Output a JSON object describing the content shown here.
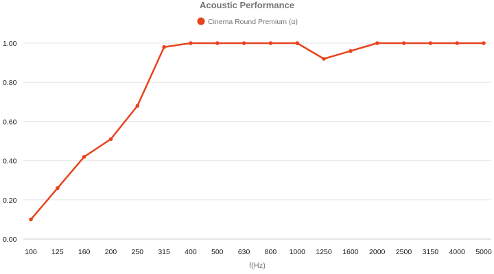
{
  "chart_data": {
    "type": "line",
    "title": "Acoustic Performance",
    "xlabel": "f(Hz)",
    "ylabel": "",
    "categories": [
      "100",
      "125",
      "160",
      "200",
      "250",
      "315",
      "400",
      "500",
      "630",
      "800",
      "1000",
      "1250",
      "1600",
      "2000",
      "2500",
      "3150",
      "4000",
      "5000"
    ],
    "series": [
      {
        "name": "Cinema Round Premium (α)",
        "color": "#e8431c",
        "values": [
          0.1,
          0.26,
          0.42,
          0.51,
          0.68,
          0.98,
          1.0,
          1.0,
          1.0,
          1.0,
          1.0,
          0.92,
          0.96,
          1.0,
          1.0,
          1.0,
          1.0,
          1.0
        ]
      }
    ],
    "ylim": [
      0,
      1.0
    ],
    "yticks": [
      "0.00",
      "0.20",
      "0.40",
      "0.60",
      "0.80",
      "1.00"
    ],
    "ytick_values": [
      0,
      0.2,
      0.4,
      0.6,
      0.8,
      1.0
    ],
    "grid": true,
    "legend_position": "top-center"
  }
}
